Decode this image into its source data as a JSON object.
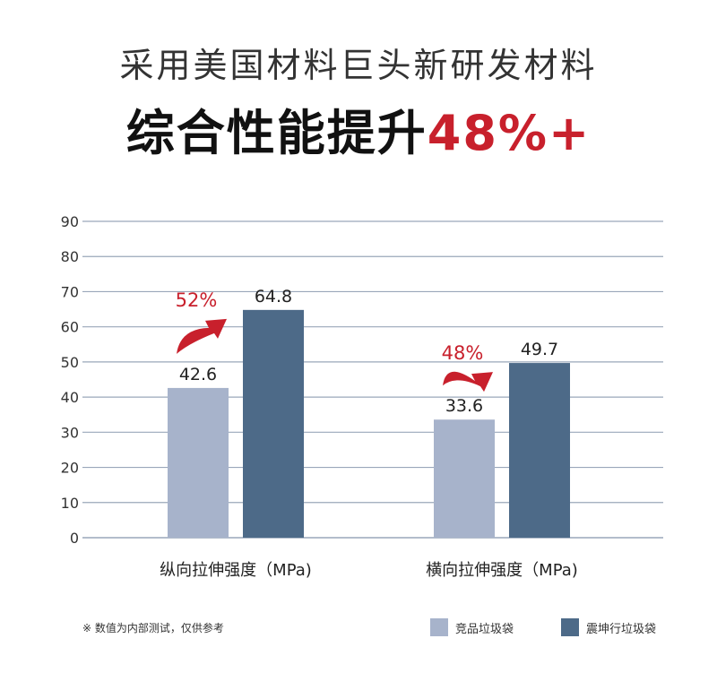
{
  "header": {
    "subtitle": "采用美国材料巨头新研发材料",
    "title_main": "综合性能提升",
    "title_accent": "48%+"
  },
  "colors": {
    "competitor": "#a7b3cb",
    "brand": "#4d6a88",
    "accent": "#c8202c",
    "gridline": "#9aa7ba"
  },
  "chart_data": {
    "type": "bar",
    "categories": [
      "纵向拉伸强度（MPa)",
      "横向拉伸强度（MPa)"
    ],
    "series": [
      {
        "name": "竞品垃圾袋",
        "values": [
          42.6,
          33.6
        ]
      },
      {
        "name": "震坤行垃圾袋",
        "values": [
          64.8,
          49.7
        ]
      }
    ],
    "value_labels": [
      [
        "42.6",
        "33.6"
      ],
      [
        "64.8",
        "49.7"
      ]
    ],
    "improvements": [
      "52%",
      "48%"
    ],
    "ylim": [
      0,
      90
    ],
    "yticks": [
      "0",
      "10",
      "20",
      "30",
      "40",
      "50",
      "60",
      "70",
      "80",
      "90"
    ],
    "grid": true,
    "legend_position": "bottom-right"
  },
  "footer": {
    "note": "※  数值为内部测试，仅供参考"
  }
}
